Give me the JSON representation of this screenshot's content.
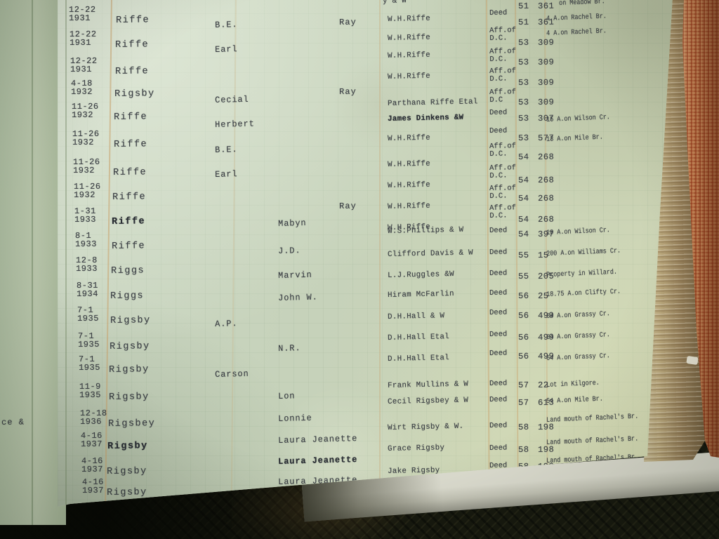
{
  "fragments": {
    "left_page_text": "ce &",
    "top_date": "12"
  },
  "ledger": {
    "partial_top_row": {
      "grantee_fragment": "y & W",
      "book": "51",
      "page_num": "361",
      "description_fragment": "on Meadow Br."
    },
    "left_entries": [
      {
        "date": "12-22",
        "year": "1931",
        "surname": "Riffe",
        "given": "B.E.",
        "given_col": 1,
        "ray": "Ray",
        "bold": false,
        "given_bold": false
      },
      {
        "date": "12-22",
        "year": "1931",
        "surname": "Riffe",
        "given": "Earl",
        "given_col": 1,
        "ray": "",
        "bold": false,
        "given_bold": false
      },
      {
        "date": "12-22",
        "year": "1931",
        "surname": "Riffe",
        "given": "",
        "given_col": 1,
        "ray": "",
        "bold": false,
        "given_bold": false
      },
      {
        "date": "4-18",
        "year": "1932",
        "surname": "Rigsby",
        "given": "Cecial",
        "given_col": 1,
        "ray": "Ray",
        "bold": false,
        "given_bold": false
      },
      {
        "date": "11-26",
        "year": "1932",
        "surname": "Riffe",
        "given": "Herbert",
        "given_col": 1,
        "ray": "",
        "bold": false,
        "given_bold": false
      },
      {
        "date": "11-26",
        "year": "1932",
        "surname": "Riffe",
        "given": "B.E.",
        "given_col": 1,
        "ray": "",
        "bold": false,
        "given_bold": false
      },
      {
        "date": "11-26",
        "year": "1932",
        "surname": "Riffe",
        "given": "Earl",
        "given_col": 1,
        "ray": "",
        "bold": false,
        "given_bold": false
      },
      {
        "date": "11-26",
        "year": "1932",
        "surname": "Riffe",
        "given": "",
        "given_col": 1,
        "ray": "Ray",
        "bold": false,
        "given_bold": false
      },
      {
        "date": "1-31",
        "year": "1933",
        "surname": "Riffe",
        "given": "Mabyn",
        "given_col": 2,
        "ray": "",
        "bold": true,
        "given_bold": false
      },
      {
        "date": "8-1",
        "year": "1933",
        "surname": "Riffe",
        "given": "J.D.",
        "given_col": 2,
        "ray": "",
        "bold": false,
        "given_bold": false
      },
      {
        "date": "12-8",
        "year": "1933",
        "surname": "Riggs",
        "given": "Marvin",
        "given_col": 2,
        "ray": "",
        "bold": false,
        "given_bold": false
      },
      {
        "date": "8-31",
        "year": "1934",
        "surname": "Riggs",
        "given": "John W.",
        "given_col": 2,
        "ray": "",
        "bold": false,
        "given_bold": false
      },
      {
        "date": "7-1",
        "year": "1935",
        "surname": "Rigsby",
        "given": "A.P.",
        "given_col": 1,
        "ray": "",
        "bold": false,
        "given_bold": false
      },
      {
        "date": "7-1",
        "year": "1935",
        "surname": "Rigsby",
        "given": "N.R.",
        "given_col": 2,
        "ray": "",
        "bold": false,
        "given_bold": false
      },
      {
        "date": "7-1",
        "year": "1935",
        "surname": "Rigsby",
        "given": "Carson",
        "given_col": 1,
        "ray": "",
        "bold": false,
        "given_bold": false
      },
      {
        "date": "11-9",
        "year": "1935",
        "surname": "Rigsby",
        "given": "Lon",
        "given_col": 2,
        "ray": "",
        "bold": false,
        "given_bold": false
      },
      {
        "date": "12-18",
        "year": "1936",
        "surname": "Rigsbey",
        "given": "Lonnie",
        "given_col": 2,
        "ray": "",
        "bold": false,
        "given_bold": false
      },
      {
        "date": "4-16",
        "year": "1937",
        "surname": "Rigsby",
        "given": "Laura Jeanette",
        "given_col": 2,
        "ray": "",
        "bold": true,
        "given_bold": false
      },
      {
        "date": "4-16",
        "year": "1937",
        "surname": "Rigsby",
        "given": "Laura Jeanette",
        "given_col": 2,
        "ray": "",
        "bold": false,
        "given_bold": true
      },
      {
        "date": "4-16",
        "year": "1937",
        "surname": "Rigsby",
        "given": "Laura Jeanette",
        "given_col": 2,
        "ray": "",
        "bold": false,
        "given_bold": false
      }
    ],
    "right_entries": [
      {
        "grantee": "W.H.Riffe",
        "instrument": "Deed",
        "book": "51",
        "page_num": "361",
        "description": "4 A.on Rachel Br.",
        "bold": false
      },
      {
        "grantee": "W.H.Riffe",
        "instrument": "Aff.of D.C.",
        "book": "53",
        "page_num": "309",
        "description": "4 A.on Rachel Br.",
        "bold": false
      },
      {
        "grantee": "W.H.Riffe",
        "instrument": "Aff.of D.C.",
        "book": "53",
        "page_num": "309",
        "description": "",
        "bold": false
      },
      {
        "grantee": "W.H.Riffe",
        "instrument": "Aff.of D.C.",
        "book": "53",
        "page_num": "309",
        "description": "",
        "bold": false
      },
      {
        "grantee": "Parthana Riffe Etal",
        "instrument": "Aff.of D.C",
        "book": "53",
        "page_num": "309",
        "description": "",
        "bold": false
      },
      {
        "grantee": "James Dinkens &W",
        "instrument": "Deed",
        "book": "53",
        "page_num": "307",
        "description": "15 A.on Wilson Cr.",
        "bold": true
      },
      {
        "grantee": "W.H.Riffe",
        "instrument": "Deed",
        "book": "53",
        "page_num": "577",
        "description": "13 A.on Mile Br.",
        "bold": false
      },
      {
        "grantee": "W.H.Riffe",
        "instrument": "Aff.of D.C.",
        "book": "54",
        "page_num": "268",
        "description": "",
        "bold": false
      },
      {
        "grantee": "W.H.Riffe",
        "instrument": "Aff.of D.C.",
        "book": "54",
        "page_num": "268",
        "description": "",
        "bold": false
      },
      {
        "grantee": "W.H.Riffe",
        "instrument": "Aff.of D.C.",
        "book": "54",
        "page_num": "268",
        "description": "",
        "bold": false
      },
      {
        "grantee": "W.H.Riffe",
        "instrument": "Aff.of D.C.",
        "book": "54",
        "page_num": "268",
        "description": "",
        "bold": false
      },
      {
        "grantee": "W.S.Phillips & W",
        "instrument": "Deed",
        "book": "54",
        "page_num": "397",
        "description": "10 A.on Wilson Cr.",
        "bold": false
      },
      {
        "grantee": "Clifford Davis & W",
        "instrument": "Deed",
        "book": "55",
        "page_num": "15",
        "description": "200 A.on Williams Cr.",
        "bold": false
      },
      {
        "grantee": "L.J.Ruggles &W",
        "instrument": "Deed",
        "book": "55",
        "page_num": "205",
        "description": "Property in Willard.",
        "bold": false
      },
      {
        "grantee": "Hiram McFarlin",
        "instrument": "Deed",
        "book": "56",
        "page_num": "25",
        "description": "18.75 A.on Clifty Cr.",
        "bold": false
      },
      {
        "grantee": "D.H.Hall & W",
        "instrument": "Deed",
        "book": "56",
        "page_num": "499",
        "description": "64 A.on Grassy Cr.",
        "bold": false
      },
      {
        "grantee": "D.H.Hall Etal",
        "instrument": "Deed",
        "book": "56",
        "page_num": "499",
        "description": "64 A.on Grassy Cr.",
        "bold": false
      },
      {
        "grantee": "D.H.Hall Etal",
        "instrument": "Deed",
        "book": "56",
        "page_num": "499",
        "description": "64 A.on Grassy Cr.",
        "bold": false
      },
      {
        "grantee": "Frank Mullins & W",
        "instrument": "Deed",
        "book": "57",
        "page_num": "22",
        "description": "Lot in Kilgore.",
        "bold": false
      },
      {
        "grantee": "Cecil Rigsbey & W",
        "instrument": "Deed",
        "book": "57",
        "page_num": "613",
        "description": "54 A.on Mile Br.",
        "bold": false
      },
      {
        "grantee": "Wirt Rigsby & W.",
        "instrument": "Deed",
        "book": "58",
        "page_num": "198",
        "description": "Land mouth of Rachel's Br.",
        "bold": false
      },
      {
        "grantee": "Grace Rigsby",
        "instrument": "Deed",
        "book": "58",
        "page_num": "198",
        "description": "Land mouth of Rachel's Br.",
        "bold": false
      },
      {
        "grantee": "Jake Rigsby",
        "instrument": "Deed",
        "book": "58",
        "page_num": "198",
        "description": "Land mouth of Rachel's Br.",
        "bold": false
      }
    ]
  },
  "colors": {
    "page_green": "#c7d3bb",
    "cover_orange": "#c17e50",
    "ink": "#3a3e44",
    "rule_tan": "#c9a06a"
  }
}
